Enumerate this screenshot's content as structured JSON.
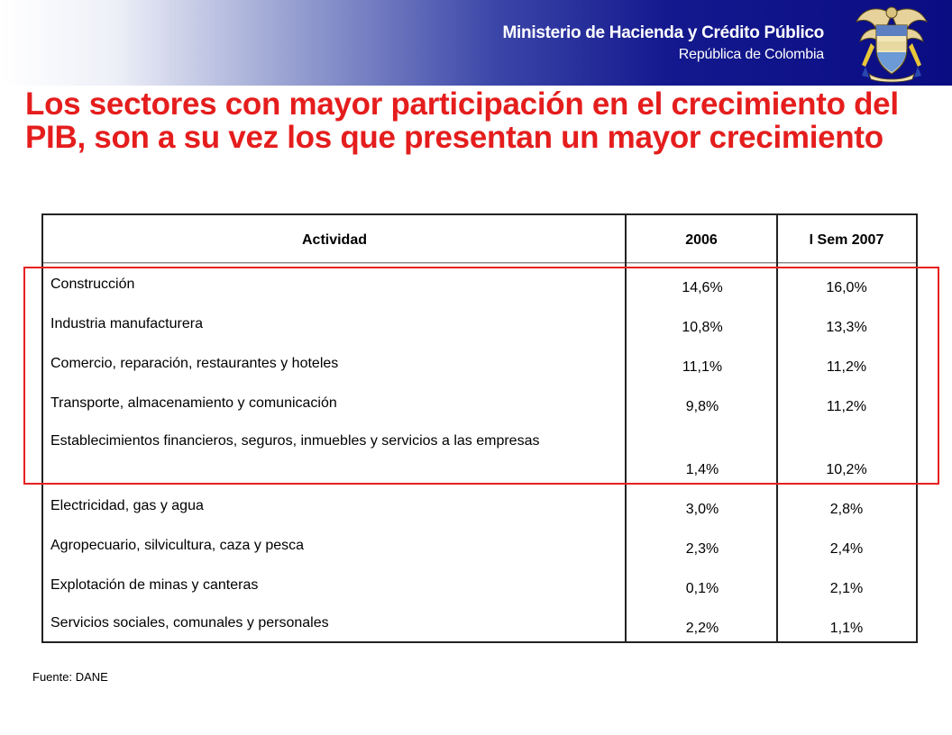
{
  "header": {
    "ministry": "Ministerio de Hacienda y Crédito Público",
    "country": "República de Colombia",
    "emblem_icon": "colombia-coat-of-arms-icon"
  },
  "title": "Los sectores con mayor participación en el crecimiento del PIB, son a su vez los que presentan un mayor crecimiento",
  "table": {
    "headers": [
      "Actividad",
      "2006",
      "I Sem 2007"
    ],
    "rows": [
      {
        "actividad": "Construcción",
        "y2006": "14,6%",
        "y2007": "16,0%"
      },
      {
        "actividad": "Industria manufacturera",
        "y2006": "10,8%",
        "y2007": "13,3%"
      },
      {
        "actividad": "Comercio, reparación, restaurantes y hoteles",
        "y2006": "11,1%",
        "y2007": "11,2%"
      },
      {
        "actividad": "Transporte, almacenamiento y comunicación",
        "y2006": "9,8%",
        "y2007": "11,2%"
      },
      {
        "actividad": "Establecimientos financieros, seguros, inmuebles y servicios a las empresas",
        "y2006": "1,4%",
        "y2007": "10,2%"
      },
      {
        "actividad": "Electricidad, gas y agua",
        "y2006": "3,0%",
        "y2007": "2,8%"
      },
      {
        "actividad": "Agropecuario, silvicultura, caza y pesca",
        "y2006": "2,3%",
        "y2007": "2,4%"
      },
      {
        "actividad": "Explotación de minas y canteras",
        "y2006": "0,1%",
        "y2007": "2,1%"
      },
      {
        "actividad": "Servicios sociales, comunales y personales",
        "y2006": "2,2%",
        "y2007": "1,1%"
      }
    ]
  },
  "highlight_color": "#e62020",
  "title_color": "#e51d1d",
  "source": "Fuente: DANE"
}
